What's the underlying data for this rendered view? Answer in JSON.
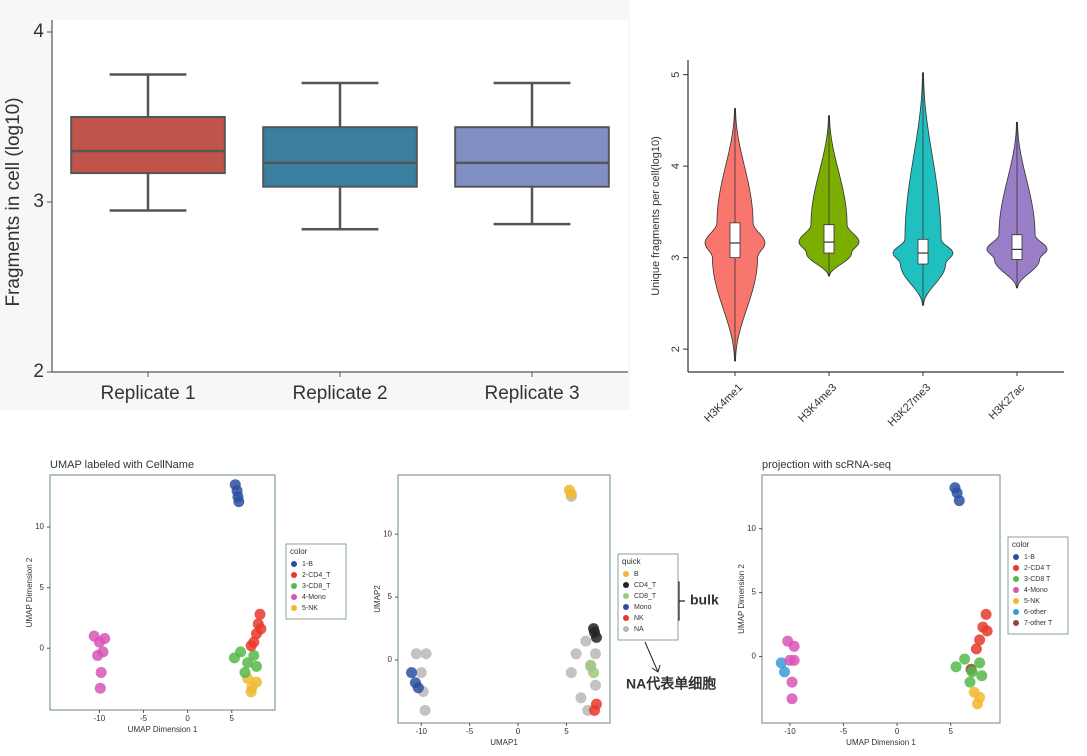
{
  "chart_data": [
    {
      "type": "box",
      "y_label": "Fragments in cell (log10)",
      "categories": [
        "Replicate 1",
        "Replicate 2",
        "Replicate 3"
      ],
      "colors": [
        "#c0544a",
        "#3a7ea0",
        "#8090c4"
      ],
      "low": [
        2.95,
        2.84,
        2.87
      ],
      "q1": [
        3.17,
        3.09,
        3.09
      ],
      "median": [
        3.3,
        3.23,
        3.23
      ],
      "q3": [
        3.5,
        3.44,
        3.44
      ],
      "high": [
        3.75,
        3.7,
        3.7
      ],
      "ylim": [
        2,
        4
      ],
      "yticks": [
        2,
        3,
        4
      ]
    },
    {
      "type": "violin",
      "y_label": "Unique fragments per cell(log10)",
      "categories": [
        "H3K4me1",
        "H3K4me3",
        "H3K27me3",
        "H3K27ac"
      ],
      "colors": [
        "#f8766d",
        "#7cae00",
        "#20c0c0",
        "#9a7fc8"
      ],
      "low": [
        1.87,
        2.8,
        2.48,
        2.67
      ],
      "q1": [
        3.0,
        3.05,
        2.93,
        2.98
      ],
      "median": [
        3.16,
        3.17,
        3.05,
        3.09
      ],
      "q3": [
        3.38,
        3.36,
        3.2,
        3.25
      ],
      "high": [
        4.63,
        4.55,
        5.02,
        4.48
      ],
      "ylim": [
        1.75,
        5.16
      ],
      "yticks": [
        2,
        3,
        4,
        5
      ]
    },
    {
      "type": "scatter",
      "title": "UMAP labeled with CellName",
      "x_label": "UMAP Dimension 1",
      "y_label": "UMAP Dimension 2",
      "legend_title": "color",
      "xlim": [
        -15.6,
        9.9
      ],
      "ylim": [
        -5.1,
        14.3
      ],
      "xticks": [
        -10,
        -5,
        0,
        5
      ],
      "yticks": [
        0,
        5,
        10
      ],
      "series": [
        {
          "name": "1-B",
          "color": "#2a4fa0",
          "x": [
            5.4,
            5.6,
            5.7,
            5.8
          ],
          "values": [
            13.5,
            13,
            12.5,
            12.1
          ]
        },
        {
          "name": "2-CD4_T",
          "color": "#e8382c",
          "x": [
            8.2,
            8.0,
            7.8,
            7.5,
            7.2,
            8.3
          ],
          "values": [
            2.8,
            2.0,
            1.2,
            0.5,
            0.2,
            1.6
          ]
        },
        {
          "name": "3-CD8_T",
          "color": "#55b84a",
          "x": [
            5.3,
            6.0,
            6.8,
            7.5,
            6.5,
            7.8
          ],
          "values": [
            -0.8,
            -0.3,
            -1.2,
            -0.6,
            -2.0,
            -1.5
          ]
        },
        {
          "name": "4-Mono",
          "color": "#d855b5",
          "x": [
            -10.6,
            -10,
            -9.4,
            -10.2,
            -9.6,
            -9.8,
            -9.9
          ],
          "values": [
            1.0,
            0.5,
            0.8,
            -0.6,
            -0.3,
            -2.0,
            -3.3
          ]
        },
        {
          "name": "5-NK",
          "color": "#f0b830",
          "x": [
            6.8,
            7.3,
            7.8,
            7.2
          ],
          "values": [
            -2.5,
            -3.2,
            -2.8,
            -3.6
          ]
        }
      ]
    },
    {
      "type": "scatter",
      "x_label": "UMAP1",
      "y_label": "UMAP2",
      "legend_title": "quick",
      "annotations": [
        "bulk",
        "NA代表单细胞"
      ],
      "xlim": [
        -12.4,
        9.5
      ],
      "ylim": [
        -5,
        14.7
      ],
      "xticks": [
        -10,
        -5,
        0,
        5
      ],
      "yticks": [
        0,
        5,
        10
      ],
      "series": [
        {
          "name": "B",
          "color": "#f0b830",
          "x": [
            5.3,
            5.5
          ],
          "values": [
            13.5,
            13.2
          ]
        },
        {
          "name": "CD4_T",
          "color": "#222222",
          "x": [
            7.8,
            8.1,
            7.9
          ],
          "values": [
            2.5,
            1.8,
            2.2
          ]
        },
        {
          "name": "CD8_T",
          "color": "#a0c880",
          "x": [
            7.5,
            7.8
          ],
          "values": [
            -0.4,
            -1.0
          ]
        },
        {
          "name": "Mono",
          "color": "#2a4fa0",
          "x": [
            -11,
            -10.6,
            -10.3
          ],
          "values": [
            -1,
            -1.8,
            -2.2
          ]
        },
        {
          "name": "NK",
          "color": "#e8382c",
          "x": [
            7.9,
            8.1
          ],
          "values": [
            -4,
            -3.5
          ]
        },
        {
          "name": "NA",
          "color": "#b8b8b8",
          "x": [
            -10.5,
            -9.5,
            -10,
            -9.8,
            -9.6,
            5.5,
            6,
            7,
            7.5,
            8,
            6.5,
            7.2,
            8,
            5.5
          ],
          "values": [
            0.5,
            0.5,
            -1,
            -2.5,
            -4,
            -1,
            0.5,
            1.5,
            -0.5,
            -2,
            -3,
            -4,
            0.5,
            13
          ]
        }
      ]
    },
    {
      "type": "scatter",
      "title": "projection with scRNA-seq",
      "x_label": "UMAP Dimension 1",
      "y_label": "UMAP Dimension 2",
      "legend_title": "color",
      "xlim": [
        -12.6,
        9.6
      ],
      "ylim": [
        -5.2,
        14.2
      ],
      "xticks": [
        -10,
        -5,
        0,
        5
      ],
      "yticks": [
        0,
        5,
        10
      ],
      "series": [
        {
          "name": "1-B",
          "color": "#2a4fa0",
          "x": [
            5.4,
            5.6,
            5.8
          ],
          "values": [
            13.2,
            12.8,
            12.2
          ]
        },
        {
          "name": "2-CD4 T",
          "color": "#e8382c",
          "x": [
            8.3,
            8.0,
            7.7,
            7.4,
            8.4
          ],
          "values": [
            3.3,
            2.3,
            1.3,
            0.6,
            2.0
          ]
        },
        {
          "name": "3-CD8 T",
          "color": "#55b84a",
          "x": [
            5.5,
            6.3,
            7.0,
            7.7,
            6.8,
            7.9
          ],
          "values": [
            -0.8,
            -0.2,
            -1.2,
            -0.5,
            -2.0,
            -1.5
          ]
        },
        {
          "name": "4-Mono",
          "color": "#d855b5",
          "x": [
            -10.2,
            -9.6,
            -10,
            -9.6,
            -9.8,
            -9.8
          ],
          "values": [
            1.2,
            0.8,
            -0.3,
            -0.3,
            -2.0,
            -3.3
          ]
        },
        {
          "name": "5-NK",
          "color": "#f0b830",
          "x": [
            7.2,
            7.7,
            7.5
          ],
          "values": [
            -2.8,
            -3.2,
            -3.7
          ]
        },
        {
          "name": "6-other",
          "color": "#3a9ad9",
          "x": [
            -10.8,
            -10.5
          ],
          "values": [
            -0.5,
            -1.2
          ]
        },
        {
          "name": "7-other T",
          "color": "#8b4a3a",
          "x": [
            6.9
          ],
          "values": [
            -1.0
          ]
        }
      ]
    }
  ]
}
